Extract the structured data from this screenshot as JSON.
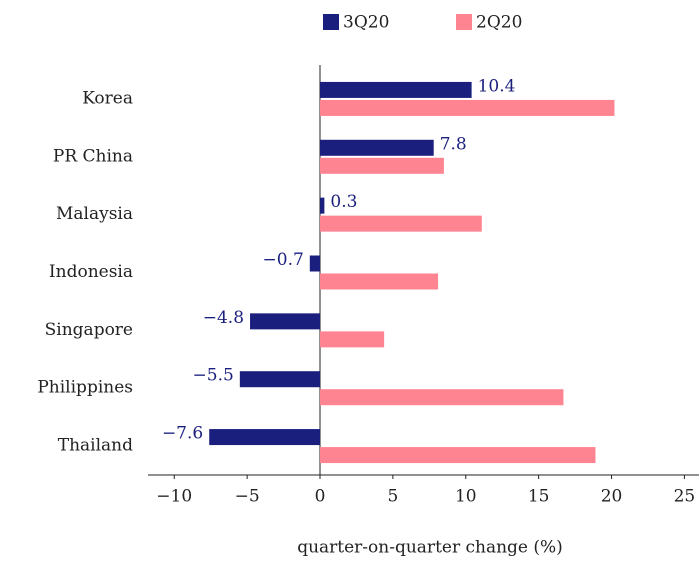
{
  "chart_data": {
    "type": "barh",
    "xlabel": "quarter-on-quarter change (%)",
    "categories": [
      "Korea",
      "PR China",
      "Malaysia",
      "Indonesia",
      "Singapore",
      "Philippines",
      "Thailand"
    ],
    "series": [
      {
        "name": "3Q20",
        "color": "#1a1f7e",
        "values": [
          10.4,
          7.8,
          0.3,
          -0.7,
          -4.8,
          -5.5,
          -7.6
        ],
        "value_labels": [
          "10.4",
          "7.8",
          "0.3",
          "−0.7",
          "−4.8",
          "−5.5",
          "−7.6"
        ]
      },
      {
        "name": "2Q20",
        "color": "#ff8491",
        "values": [
          20.2,
          8.5,
          11.1,
          8.1,
          4.4,
          16.7,
          18.9
        ]
      }
    ],
    "xlim": [
      -11.8,
      26
    ],
    "xticks": [
      {
        "value": -10,
        "label": "−10"
      },
      {
        "value": -5,
        "label": "−5"
      },
      0,
      5,
      10,
      15,
      20,
      25
    ],
    "legend": "top"
  }
}
